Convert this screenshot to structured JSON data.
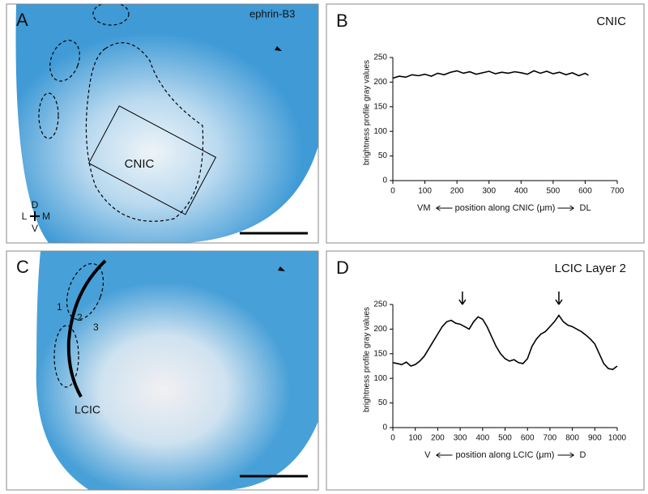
{
  "images": [
    {
      "label": "A",
      "marker": "ephrin-B3",
      "region": "CNIC",
      "orientation": {
        "dorsal": "D",
        "lateral": "L",
        "medial": "M",
        "ventral": "V"
      }
    },
    {
      "label": "C",
      "layers": [
        "1",
        "2",
        "3"
      ],
      "region": "LCIC"
    }
  ],
  "chart_data": [
    {
      "type": "line",
      "label": "B",
      "title": "CNIC",
      "y_label": "brightness profile gray values",
      "x_label_left": "VM",
      "x_label": "position along CNIC (μm)",
      "x_label_right": "DL",
      "color": "#000000",
      "x": [
        0,
        20,
        40,
        60,
        80,
        100,
        120,
        140,
        160,
        180,
        200,
        220,
        240,
        260,
        280,
        300,
        320,
        340,
        360,
        380,
        400,
        420,
        440,
        460,
        480,
        500,
        520,
        540,
        560,
        580,
        600,
        610
      ],
      "values": [
        208,
        212,
        210,
        215,
        213,
        216,
        212,
        218,
        215,
        220,
        223,
        218,
        221,
        216,
        219,
        222,
        217,
        220,
        218,
        221,
        219,
        216,
        223,
        218,
        222,
        217,
        220,
        215,
        219,
        213,
        218,
        214
      ],
      "xlim": [
        0,
        700
      ],
      "xticks": [
        0,
        100,
        200,
        300,
        400,
        500,
        600,
        700
      ],
      "ylim": [
        0,
        250
      ],
      "yticks": [
        0,
        50,
        100,
        150,
        200,
        250
      ]
    },
    {
      "type": "line",
      "label": "D",
      "title": "LCIC Layer 2",
      "y_label": "brightness profile gray values",
      "x_label_left": "V",
      "x_label": "position along LCIC (μm)",
      "x_label_right": "D",
      "color": "#000000",
      "arrow_x": [
        310,
        740
      ],
      "x": [
        0,
        20,
        40,
        60,
        80,
        100,
        120,
        140,
        160,
        180,
        200,
        220,
        240,
        260,
        280,
        300,
        320,
        340,
        360,
        380,
        400,
        420,
        440,
        460,
        480,
        500,
        520,
        540,
        560,
        580,
        600,
        620,
        640,
        660,
        680,
        700,
        720,
        740,
        760,
        780,
        800,
        820,
        840,
        860,
        880,
        900,
        920,
        940,
        960,
        980,
        1000
      ],
      "values": [
        132,
        130,
        128,
        133,
        125,
        128,
        135,
        145,
        160,
        175,
        190,
        205,
        215,
        218,
        212,
        210,
        205,
        200,
        215,
        225,
        220,
        205,
        185,
        165,
        150,
        140,
        135,
        138,
        132,
        130,
        140,
        165,
        180,
        190,
        195,
        205,
        215,
        228,
        215,
        208,
        205,
        200,
        195,
        188,
        180,
        170,
        150,
        130,
        120,
        118,
        125
      ],
      "xlim": [
        0,
        1000
      ],
      "xticks": [
        0,
        100,
        200,
        300,
        400,
        500,
        600,
        700,
        800,
        900,
        1000
      ],
      "ylim": [
        0,
        250
      ],
      "yticks": [
        0,
        50,
        100,
        150,
        200,
        250
      ]
    }
  ]
}
